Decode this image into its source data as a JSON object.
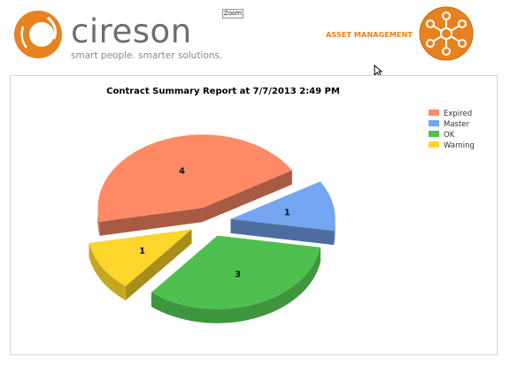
{
  "header": {
    "brand_name": "cireson",
    "brand_tagline": "smart people. smarter solutions.",
    "zoom_label": "Zoom",
    "module_title": "ASSET MANAGEMENT",
    "brand_color": "#e8821e",
    "logo_icon": "cireson-c-logo-icon",
    "module_icon": "asset-network-icon"
  },
  "chart_data": {
    "type": "pie",
    "title": "Contract Summary Report at 7/7/2013 2:49 PM",
    "style": "3d-exploded",
    "legend_position": "top-right",
    "slices": [
      {
        "name": "Expired",
        "value": 4,
        "label": "4",
        "color": "#ff8a65"
      },
      {
        "name": "Master",
        "value": 1,
        "label": "1",
        "color": "#74a5f2"
      },
      {
        "name": "OK",
        "value": 3,
        "label": "3",
        "color": "#4fc04f"
      },
      {
        "name": "Warning",
        "value": 1,
        "label": "1",
        "color": "#fdd62b"
      }
    ]
  }
}
